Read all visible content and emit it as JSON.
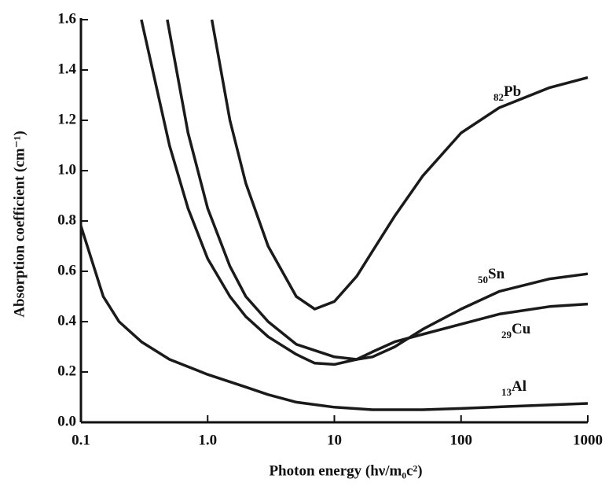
{
  "chart_data": {
    "type": "line",
    "x_label": "Photon energy (hν/m₀c²)",
    "y_label": "Absorption coefficient (cm⁻¹)",
    "xscale": "log",
    "xlim": [
      0.1,
      1000
    ],
    "xticks": [
      0.1,
      {
        "value": 1,
        "label": "1.0"
      },
      10,
      100,
      1000
    ],
    "ylim": [
      0,
      1.6
    ],
    "yticks": [
      {
        "value": 0,
        "label": "0.0"
      },
      0.2,
      0.4,
      0.6,
      0.8,
      {
        "value": 1,
        "label": "1.0"
      },
      1.2,
      1.4,
      1.6
    ],
    "series": [
      {
        "atomic_number": "82",
        "name": "Pb",
        "color": "#1a1a1a",
        "x": [
          1.08,
          1.5,
          2,
          3,
          5,
          7,
          10,
          15,
          20,
          30,
          50,
          100,
          200,
          500,
          1000
        ],
        "values": [
          1.6,
          1.2,
          0.95,
          0.7,
          0.5,
          0.45,
          0.48,
          0.58,
          0.68,
          0.82,
          0.98,
          1.15,
          1.25,
          1.33,
          1.37
        ]
      },
      {
        "atomic_number": "50",
        "name": "Sn",
        "color": "#1a1a1a",
        "x": [
          0.48,
          0.7,
          1,
          1.5,
          2,
          3,
          5,
          10,
          15,
          20,
          30,
          50,
          100,
          200,
          500,
          1000
        ],
        "values": [
          1.6,
          1.15,
          0.85,
          0.62,
          0.5,
          0.4,
          0.31,
          0.26,
          0.25,
          0.26,
          0.3,
          0.37,
          0.45,
          0.52,
          0.57,
          0.59
        ]
      },
      {
        "atomic_number": "29",
        "name": "Cu",
        "color": "#1a1a1a",
        "x": [
          0.3,
          0.5,
          0.7,
          1,
          1.5,
          2,
          3,
          5,
          7,
          10,
          15,
          20,
          30,
          50,
          100,
          200,
          500,
          1000
        ],
        "values": [
          1.6,
          1.1,
          0.85,
          0.65,
          0.5,
          0.42,
          0.34,
          0.27,
          0.235,
          0.23,
          0.25,
          0.28,
          0.32,
          0.35,
          0.39,
          0.43,
          0.46,
          0.47
        ]
      },
      {
        "atomic_number": "13",
        "name": "Al",
        "color": "#1a1a1a",
        "x": [
          0.1,
          0.15,
          0.2,
          0.3,
          0.5,
          1,
          2,
          3,
          5,
          10,
          20,
          50,
          100,
          300,
          1000
        ],
        "values": [
          0.78,
          0.5,
          0.4,
          0.32,
          0.25,
          0.19,
          0.14,
          0.11,
          0.08,
          0.06,
          0.05,
          0.05,
          0.055,
          0.065,
          0.075
        ]
      }
    ]
  }
}
